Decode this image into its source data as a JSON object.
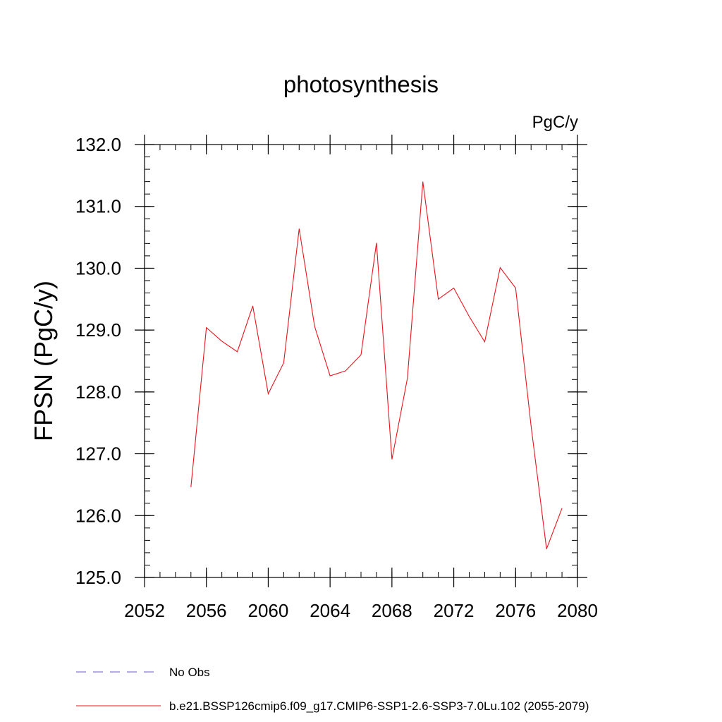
{
  "chart_data": {
    "type": "line",
    "title": "photosynthesis",
    "units_label": "PgC/y",
    "ylabel": "FPSN  (PgC/y)",
    "xlabel": "",
    "xlim": [
      2052,
      2080
    ],
    "ylim": [
      125.0,
      132.0
    ],
    "xticks": [
      2052,
      2056,
      2060,
      2064,
      2068,
      2072,
      2076,
      2080
    ],
    "xtick_labels": [
      "2052",
      "2056",
      "2060",
      "2064",
      "2068",
      "2072",
      "2076",
      "2080"
    ],
    "yticks": [
      125.0,
      126.0,
      127.0,
      128.0,
      129.0,
      130.0,
      131.0,
      132.0
    ],
    "ytick_labels": [
      "125.0",
      "126.0",
      "127.0",
      "128.0",
      "129.0",
      "130.0",
      "131.0",
      "132.0"
    ],
    "series": [
      {
        "name": "b.e21.BSSP126cmip6.f09_g17.CMIP6-SSP1-2.6-SSP3-7.0Lu.102 (2055-2079)",
        "color": "#e8141e",
        "x": [
          2055,
          2056,
          2057,
          2058,
          2059,
          2060,
          2061,
          2062,
          2063,
          2064,
          2065,
          2066,
          2067,
          2068,
          2069,
          2070,
          2071,
          2072,
          2073,
          2074,
          2075,
          2076,
          2077,
          2078,
          2079
        ],
        "values": [
          126.46,
          129.04,
          128.82,
          128.65,
          129.39,
          127.97,
          128.47,
          130.64,
          129.06,
          128.26,
          128.34,
          128.6,
          130.41,
          126.91,
          128.22,
          131.4,
          129.5,
          129.68,
          129.22,
          128.81,
          130.01,
          129.68,
          127.45,
          125.46,
          126.12
        ]
      }
    ],
    "legend": [
      {
        "label": "No Obs",
        "color": "#6a5acd",
        "style": "dashed"
      },
      {
        "label": "b.e21.BSSP126cmip6.f09_g17.CMIP6-SSP1-2.6-SSP3-7.0Lu.102 (2055-2079)",
        "color": "#e8141e",
        "style": "solid"
      }
    ]
  }
}
